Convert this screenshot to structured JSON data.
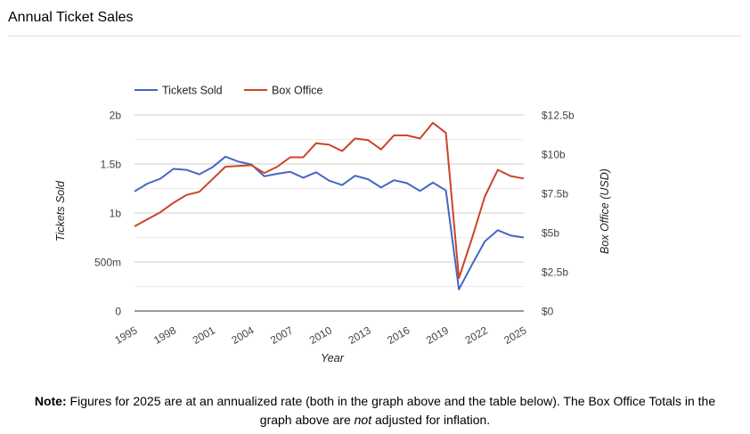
{
  "page": {
    "title": "Annual Ticket Sales"
  },
  "note": {
    "label": "Note:",
    "text_1": " Figures for 2025 are at an annualized rate (both in the graph above and the table below). The Box Office Totals in the graph above are ",
    "emphasis": "not",
    "text_2": " adjusted for inflation."
  },
  "chart_data": {
    "type": "line",
    "title": "",
    "xlabel": "Year",
    "ylabel_left": "Tickets Sold",
    "ylabel_right": "Box Office (USD)",
    "x": [
      1995,
      1996,
      1997,
      1998,
      1999,
      2000,
      2001,
      2002,
      2003,
      2004,
      2005,
      2006,
      2007,
      2008,
      2009,
      2010,
      2011,
      2012,
      2013,
      2014,
      2015,
      2016,
      2017,
      2018,
      2019,
      2020,
      2021,
      2022,
      2023,
      2024,
      2025
    ],
    "x_ticks": [
      "1995",
      "1998",
      "2001",
      "2004",
      "2007",
      "2010",
      "2013",
      "2016",
      "2019",
      "2022",
      "2025"
    ],
    "x_range": [
      1995,
      2025
    ],
    "y_left_range": [
      0,
      2000000000
    ],
    "y_left_ticks": [
      {
        "value": 0,
        "label": "0"
      },
      {
        "value": 500000000,
        "label": "500m"
      },
      {
        "value": 1000000000,
        "label": "1b"
      },
      {
        "value": 1500000000,
        "label": "1.5b"
      },
      {
        "value": 2000000000,
        "label": "2b"
      }
    ],
    "y_right_range": [
      0,
      12500000000
    ],
    "y_right_ticks": [
      {
        "value": 0,
        "label": "$0"
      },
      {
        "value": 2500000000,
        "label": "$2.5b"
      },
      {
        "value": 5000000000,
        "label": "$5b"
      },
      {
        "value": 7500000000,
        "label": "$7.5b"
      },
      {
        "value": 10000000000,
        "label": "$10b"
      },
      {
        "value": 12500000000,
        "label": "$12.5b"
      }
    ],
    "grid": true,
    "legend_position": "top-left",
    "series": [
      {
        "name": "Tickets Sold",
        "axis": "left",
        "color": "#4466c6",
        "values": [
          1220000000,
          1300000000,
          1350000000,
          1450000000,
          1440000000,
          1395000000,
          1465000000,
          1575000000,
          1525000000,
          1495000000,
          1375000000,
          1400000000,
          1420000000,
          1360000000,
          1415000000,
          1330000000,
          1285000000,
          1380000000,
          1345000000,
          1260000000,
          1335000000,
          1305000000,
          1225000000,
          1310000000,
          1230000000,
          220000000,
          470000000,
          710000000,
          825000000,
          770000000,
          750000000
        ]
      },
      {
        "name": "Box Office",
        "axis": "right",
        "color": "#cc4427",
        "values": [
          5400000000,
          5850000000,
          6300000000,
          6900000000,
          7400000000,
          7600000000,
          8400000000,
          9200000000,
          9250000000,
          9300000000,
          8800000000,
          9200000000,
          9800000000,
          9800000000,
          10700000000,
          10600000000,
          10200000000,
          11000000000,
          10900000000,
          10300000000,
          11200000000,
          11200000000,
          11000000000,
          12000000000,
          11350000000,
          2100000000,
          4600000000,
          7300000000,
          9000000000,
          8600000000,
          8450000000
        ]
      }
    ]
  }
}
